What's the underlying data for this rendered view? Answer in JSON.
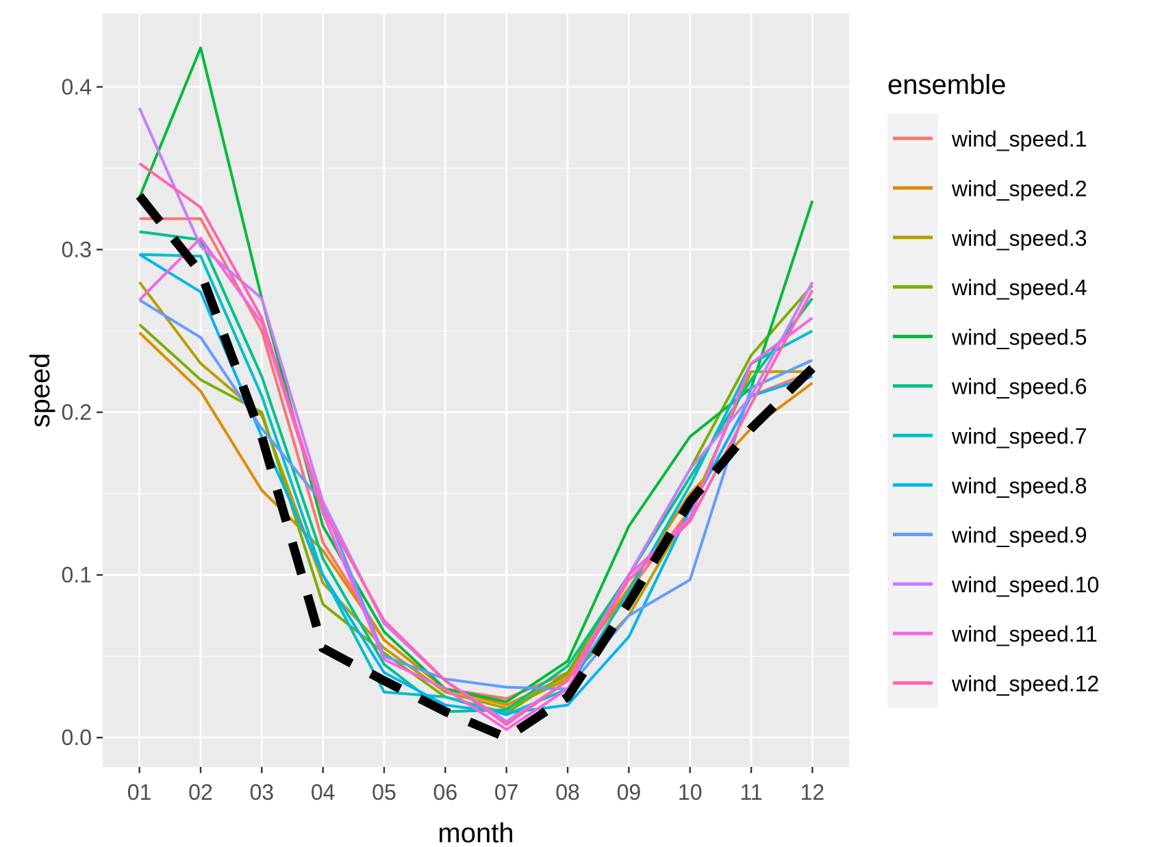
{
  "chart_data": {
    "type": "line",
    "title": "",
    "xlabel": "month",
    "ylabel": "speed",
    "categories": [
      "01",
      "02",
      "03",
      "04",
      "05",
      "06",
      "07",
      "08",
      "09",
      "10",
      "11",
      "12"
    ],
    "ylim": [
      -0.018,
      0.445
    ],
    "yticks": [
      0.0,
      0.1,
      0.2,
      0.3,
      0.4
    ],
    "ytick_labels": [
      "0.0",
      "0.1",
      "0.2",
      "0.3",
      "0.4"
    ],
    "grid": true,
    "legend": {
      "title": "ensemble",
      "position": "right"
    },
    "series": [
      {
        "name": "wind_speed.1",
        "color": "#F8766D",
        "values": [
          0.319,
          0.319,
          0.25,
          0.12,
          0.06,
          0.03,
          0.024,
          0.04,
          0.09,
          0.14,
          0.21,
          0.225
        ]
      },
      {
        "name": "wind_speed.2",
        "color": "#DE8C00",
        "values": [
          0.249,
          0.213,
          0.152,
          0.115,
          0.06,
          0.03,
          0.02,
          0.038,
          0.092,
          0.15,
          0.19,
          0.218
        ]
      },
      {
        "name": "wind_speed.3",
        "color": "#B79F00",
        "values": [
          0.28,
          0.23,
          0.198,
          0.095,
          0.055,
          0.028,
          0.018,
          0.036,
          0.075,
          0.14,
          0.225,
          0.225
        ]
      },
      {
        "name": "wind_speed.4",
        "color": "#7CAE00",
        "values": [
          0.254,
          0.22,
          0.2,
          0.082,
          0.052,
          0.025,
          0.015,
          0.04,
          0.1,
          0.165,
          0.235,
          0.278
        ]
      },
      {
        "name": "wind_speed.5",
        "color": "#00BA38",
        "values": [
          0.332,
          0.424,
          0.27,
          0.13,
          0.065,
          0.03,
          0.022,
          0.047,
          0.13,
          0.185,
          0.215,
          0.33
        ]
      },
      {
        "name": "wind_speed.6",
        "color": "#00C08B",
        "values": [
          0.311,
          0.306,
          0.222,
          0.11,
          0.045,
          0.016,
          0.017,
          0.044,
          0.1,
          0.16,
          0.22,
          0.27
        ]
      },
      {
        "name": "wind_speed.7",
        "color": "#00BFC4",
        "values": [
          0.297,
          0.296,
          0.21,
          0.1,
          0.028,
          0.025,
          0.014,
          0.03,
          0.09,
          0.155,
          0.23,
          0.25
        ]
      },
      {
        "name": "wind_speed.8",
        "color": "#00B4F0",
        "values": [
          0.297,
          0.274,
          0.185,
          0.1,
          0.04,
          0.02,
          0.015,
          0.02,
          0.062,
          0.14,
          0.21,
          0.222
        ]
      },
      {
        "name": "wind_speed.9",
        "color": "#619CFF",
        "values": [
          0.269,
          0.246,
          0.19,
          0.144,
          0.05,
          0.036,
          0.031,
          0.03,
          0.075,
          0.097,
          0.215,
          0.232
        ]
      },
      {
        "name": "wind_speed.10",
        "color": "#C77CFF",
        "values": [
          0.387,
          0.302,
          0.27,
          0.145,
          0.07,
          0.035,
          0.01,
          0.035,
          0.1,
          0.165,
          0.21,
          0.28
        ]
      },
      {
        "name": "wind_speed.11",
        "color": "#F564E3",
        "values": [
          0.269,
          0.307,
          0.255,
          0.138,
          0.048,
          0.03,
          0.005,
          0.03,
          0.1,
          0.135,
          0.23,
          0.258
        ]
      },
      {
        "name": "wind_speed.12",
        "color": "#FF64B0",
        "values": [
          0.353,
          0.326,
          0.258,
          0.14,
          0.072,
          0.035,
          0.008,
          0.035,
          0.097,
          0.133,
          0.205,
          0.275
        ]
      }
    ],
    "reference_series": {
      "style": "dashed",
      "color": "#000000",
      "values": [
        0.333,
        0.286,
        0.185,
        0.055,
        0.035,
        0.016,
        0.0,
        0.025,
        0.083,
        0.145,
        0.19,
        0.227
      ]
    }
  }
}
